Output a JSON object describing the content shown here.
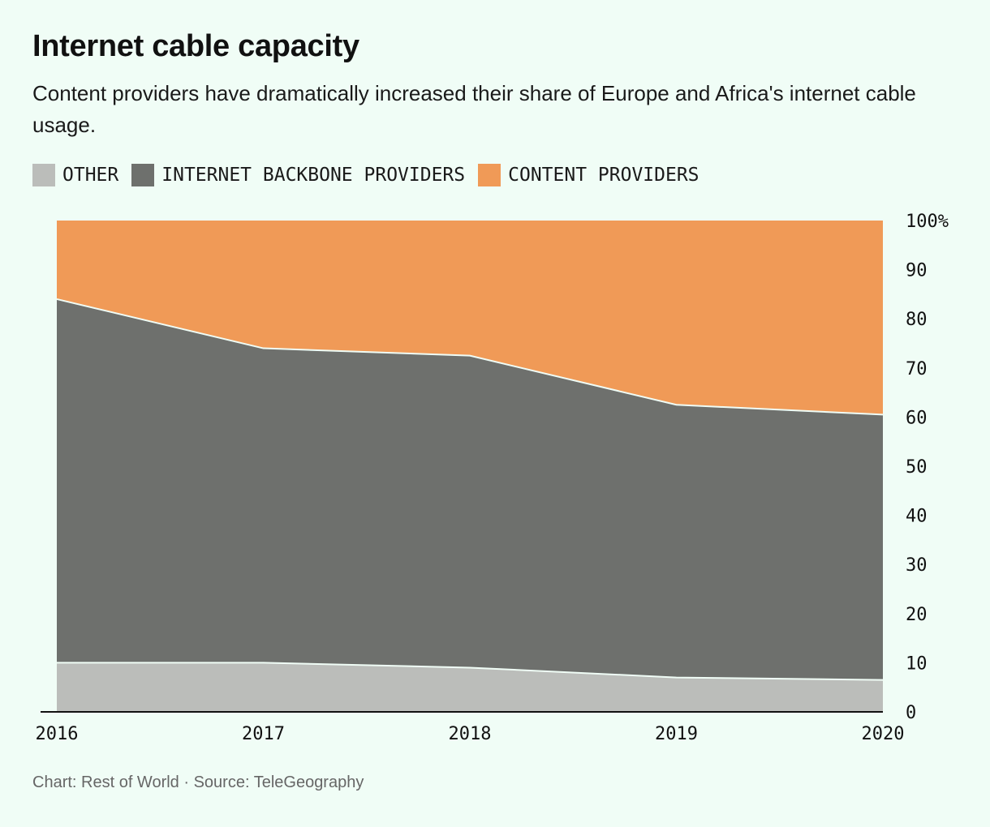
{
  "title": "Internet cable capacity",
  "subtitle": "Content providers have dramatically increased their share of Europe and Africa's internet cable usage.",
  "credit": "Chart: Rest of World · Source: TeleGeography",
  "legend": [
    {
      "label": "OTHER",
      "color": "#bbbdba"
    },
    {
      "label": "INTERNET BACKBONE PROVIDERS",
      "color": "#6e706d"
    },
    {
      "label": "CONTENT PROVIDERS",
      "color": "#f09a57"
    }
  ],
  "chart_data": {
    "type": "area",
    "stacked": true,
    "x": [
      "2016",
      "2017",
      "2018",
      "2019",
      "2020"
    ],
    "series": [
      {
        "name": "OTHER",
        "color": "#bbbdba",
        "values": [
          10,
          10,
          9,
          7,
          6.5
        ]
      },
      {
        "name": "INTERNET BACKBONE PROVIDERS",
        "color": "#6e706d",
        "values": [
          74,
          64,
          63.5,
          55.5,
          54
        ]
      },
      {
        "name": "CONTENT PROVIDERS",
        "color": "#f09a57",
        "values": [
          16,
          26,
          27.5,
          37.5,
          39.5
        ]
      }
    ],
    "ylim": [
      0,
      100
    ],
    "y_ticks": [
      "0",
      "10",
      "20",
      "30",
      "40",
      "50",
      "60",
      "70",
      "80",
      "90",
      "100%"
    ],
    "y_axis_position": "right",
    "grid": false,
    "legend_position": "top-left"
  }
}
